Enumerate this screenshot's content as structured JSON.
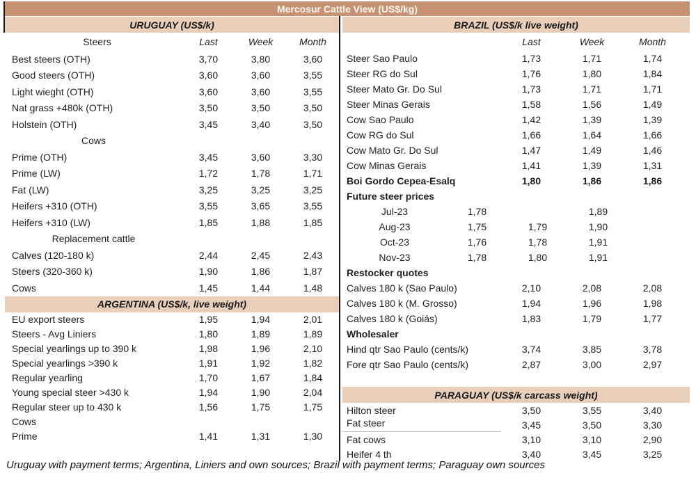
{
  "title": "Mercosur Cattle View (US$/kg)",
  "columns": {
    "last": "Last",
    "week": "Week",
    "month": "Month"
  },
  "footer": "Uruguay with payment terms; Argentina, Liniers and own sources; Brazil with payment terms; Paraguay own sources",
  "colors": {
    "title_bg": "#c79274",
    "title_text": "#fdf6f0",
    "section_bg": "#e9ceba",
    "body_text": "#1f1f1f"
  },
  "uruguay": {
    "header": "URUGUAY (US$/k)",
    "group_label": "Steers",
    "rows": [
      {
        "t": "d",
        "label": "Best steers (OTH)",
        "last": "3,70",
        "week": "3,80",
        "month": "3,60"
      },
      {
        "t": "d",
        "label": "Good steers (OTH)",
        "last": "3,60",
        "week": "3,60",
        "month": "3,55"
      },
      {
        "t": "d",
        "label": "Light wieght (OTH)",
        "last": "3,60",
        "week": "3,60",
        "month": "3,55"
      },
      {
        "t": "d",
        "label": "Nat grass +480k (OTH)",
        "last": "3,50",
        "week": "3,50",
        "month": "3,50"
      },
      {
        "t": "d",
        "label": "Holstein (OTH)",
        "last": "3,45",
        "week": "3,40",
        "month": "3,50"
      },
      {
        "t": "c",
        "label": "Cows",
        "last": "",
        "week": "",
        "month": ""
      },
      {
        "t": "d",
        "label": "Prime (OTH)",
        "last": "3,45",
        "week": "3,60",
        "month": "3,30"
      },
      {
        "t": "d",
        "label": "Prime (LW)",
        "last": "1,72",
        "week": "1,78",
        "month": "1,71"
      },
      {
        "t": "d",
        "label": "Fat (LW)",
        "last": "3,25",
        "week": "3,25",
        "month": "3,25"
      },
      {
        "t": "d",
        "label": "Heifers +310 (OTH)",
        "last": "3,55",
        "week": "3,65",
        "month": "3,55"
      },
      {
        "t": "d",
        "label": "Heifers +310 (LW)",
        "last": "1,85",
        "week": "1,88",
        "month": "1,85"
      },
      {
        "t": "c",
        "label": "Replacement cattle",
        "last": "",
        "week": "",
        "month": ""
      },
      {
        "t": "d",
        "label": "Calves (120-180 k)",
        "last": "2,44",
        "week": "2,45",
        "month": "2,43"
      },
      {
        "t": "d",
        "label": "Steers (320-360 k)",
        "last": "1,90",
        "week": "1,86",
        "month": "1,87"
      },
      {
        "t": "d",
        "label": "Cows",
        "last": "1,45",
        "week": "1,44",
        "month": "1,48"
      }
    ]
  },
  "argentina": {
    "header": "ARGENTINA (US$/k, live weight)",
    "rows": [
      {
        "t": "d",
        "label": "EU export steers",
        "last": "1,95",
        "week": "1,94",
        "month": "2,01"
      },
      {
        "t": "d",
        "label": "Steers - Avg Liniers",
        "last": "1,80",
        "week": "1,89",
        "month": "1,89"
      },
      {
        "t": "d",
        "label": "Special yearlings up to 390 k",
        "last": "1,98",
        "week": "1,96",
        "month": "2,10"
      },
      {
        "t": "d",
        "label": "Special yearlings >390 k",
        "last": "1,91",
        "week": "1,92",
        "month": "1,82"
      },
      {
        "t": "d",
        "label": "Regular yearling",
        "last": "1,70",
        "week": "1,67",
        "month": "1,84"
      },
      {
        "t": "d",
        "label": "Young special steer >430 k",
        "last": "1,94",
        "week": "1,90",
        "month": "2,04"
      },
      {
        "t": "d",
        "label": "Regular steer up to 430 k",
        "last": "1,56",
        "week": "1,75",
        "month": "1,75"
      },
      {
        "t": "d",
        "label": "Cows",
        "last": "",
        "week": "",
        "month": ""
      },
      {
        "t": "d",
        "label": "Prime",
        "last": "1,41",
        "week": "1,31",
        "month": "1,30"
      }
    ]
  },
  "brazil": {
    "header": "BRAZIL (US$/k live weight)",
    "rows": [
      {
        "t": "d",
        "label": "Steer Sao Paulo",
        "last": "1,73",
        "week": "1,71",
        "month": "1,74"
      },
      {
        "t": "d",
        "label": "Steer RG do Sul",
        "last": "1,76",
        "week": "1,80",
        "month": "1,84"
      },
      {
        "t": "d",
        "label": "Steer Mato Gr. Do Sul",
        "last": "1,73",
        "week": "1,71",
        "month": "1,71"
      },
      {
        "t": "d",
        "label": "Steer Minas Gerais",
        "last": "1,58",
        "week": "1,56",
        "month": "1,49"
      },
      {
        "t": "d",
        "label": "Cow Sao Paulo",
        "last": "1,42",
        "week": "1,39",
        "month": "1,39"
      },
      {
        "t": "d",
        "label": "Cow RG do Sul",
        "last": "1,66",
        "week": "1,64",
        "month": "1,66"
      },
      {
        "t": "d",
        "label": "Cow Mato Gr. Do Sul",
        "last": "1,47",
        "week": "1,49",
        "month": "1,46"
      },
      {
        "t": "d",
        "label": "Cow Minas Gerais",
        "last": "1,41",
        "week": "1,39",
        "month": "1,31"
      },
      {
        "t": "b",
        "label": "Boi Gordo Cepea-Esalq",
        "last": "1,80",
        "week": "1,86",
        "month": "1,86"
      },
      {
        "t": "h",
        "label": "Future steer prices",
        "last": "",
        "week": "",
        "month": ""
      },
      {
        "t": "c",
        "label": "Jul-23",
        "last": "1,78",
        "week": "",
        "month": "1,89"
      },
      {
        "t": "c",
        "label": "Aug-23",
        "last": "1,75",
        "week": "1,79",
        "month": "1,90"
      },
      {
        "t": "c",
        "label": "Oct-23",
        "last": "1,76",
        "week": "1,78",
        "month": "1,91"
      },
      {
        "t": "c",
        "label": "Nov-23",
        "last": "1,78",
        "week": "1,80",
        "month": "1,91"
      },
      {
        "t": "h",
        "label": "Restocker quotes",
        "last": "",
        "week": "",
        "month": ""
      },
      {
        "t": "d",
        "label": "Calves 180 k (Sao Paulo)",
        "last": "2,10",
        "week": "2,08",
        "month": "2,08"
      },
      {
        "t": "d",
        "label": "Calves 180 k (M. Grosso)",
        "last": "1,94",
        "week": "1,96",
        "month": "1,98"
      },
      {
        "t": "d",
        "label": "Calves 180 k (Goiás)",
        "last": "1,83",
        "week": "1,79",
        "month": "1,77"
      },
      {
        "t": "h",
        "label": "Wholesaler",
        "last": "",
        "week": "",
        "month": ""
      },
      {
        "t": "d",
        "label": "Hind qtr Sao Paulo (cents/k)",
        "last": "3,74",
        "week": "3,85",
        "month": "3,78"
      },
      {
        "t": "d",
        "label": "Fore qtr Sao Paulo (cents/k)",
        "last": "2,87",
        "week": "3,00",
        "month": "2,97"
      }
    ]
  },
  "paraguay": {
    "header": "PARAGUAY (US$/k carcass weight)",
    "rows": [
      {
        "t": "d",
        "label": "Hilton steer",
        "last": "3,50",
        "week": "3,55",
        "month": "3,40"
      },
      {
        "t": "du",
        "label": "Fat steer",
        "last": "3,45",
        "week": "3,50",
        "month": "3,30"
      },
      {
        "t": "d",
        "label": "Fat cows",
        "last": "3,10",
        "week": "3,10",
        "month": "2,90"
      },
      {
        "t": "d",
        "label": "Heifer 4 th",
        "last": "3,40",
        "week": "3,45",
        "month": "3,25"
      }
    ]
  }
}
